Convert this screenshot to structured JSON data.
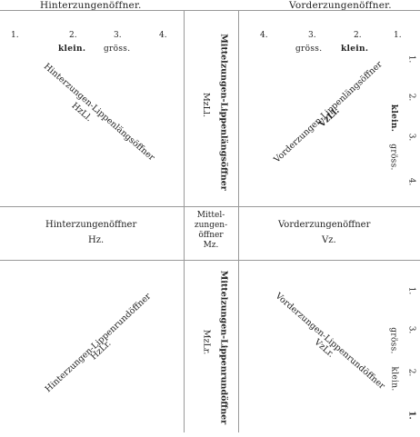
{
  "top_left": {
    "header": "Hinterzungenöffner.",
    "numbers": [
      "1.",
      "2.",
      "3.",
      "4."
    ],
    "sizes": [
      "klein.",
      "gröss."
    ],
    "diagonal": "Hinterzungen-Lippenlängsöffner",
    "abbr": "HzLl."
  },
  "top_middle": {
    "vertical": "Mittelzungen-Lippenlängsöffner",
    "abbr": "MzLl."
  },
  "top_right": {
    "header": "Vorderzungenöffner.",
    "numbers": [
      "4.",
      "3.",
      "2.",
      "1."
    ],
    "sizes": [
      "gröss.",
      "klein."
    ],
    "side_numbers": [
      "1.",
      "2.",
      "3.",
      "4."
    ],
    "side_sizes": [
      "klein.",
      "gröss."
    ],
    "diagonal": "Vorderzungen-Lippenlängsöffner",
    "abbr": "VzLl."
  },
  "middle_row": {
    "left_label": "Hinterzungenöffner",
    "left_abbr": "Hz.",
    "center_lines": [
      "Mittel-",
      "zungen-",
      "öffner",
      "Mz."
    ],
    "right_label": "Vorderzungenöffner",
    "right_abbr": "Vz."
  },
  "bottom_left": {
    "diagonal": "Hinterzungen-Lippenrundöffner",
    "abbr": "HzLr."
  },
  "bottom_middle": {
    "vertical": "Mittelzungen-Lippenrundöffner",
    "abbr": "MzLr."
  },
  "bottom_right": {
    "diagonal": "Vorderzungen-Lippenrundöffner",
    "abbr": "VzLr.",
    "side_numbers": [
      "1.",
      "3.",
      "2.",
      "1."
    ],
    "side_sizes": [
      "gröss.",
      "klein."
    ]
  }
}
